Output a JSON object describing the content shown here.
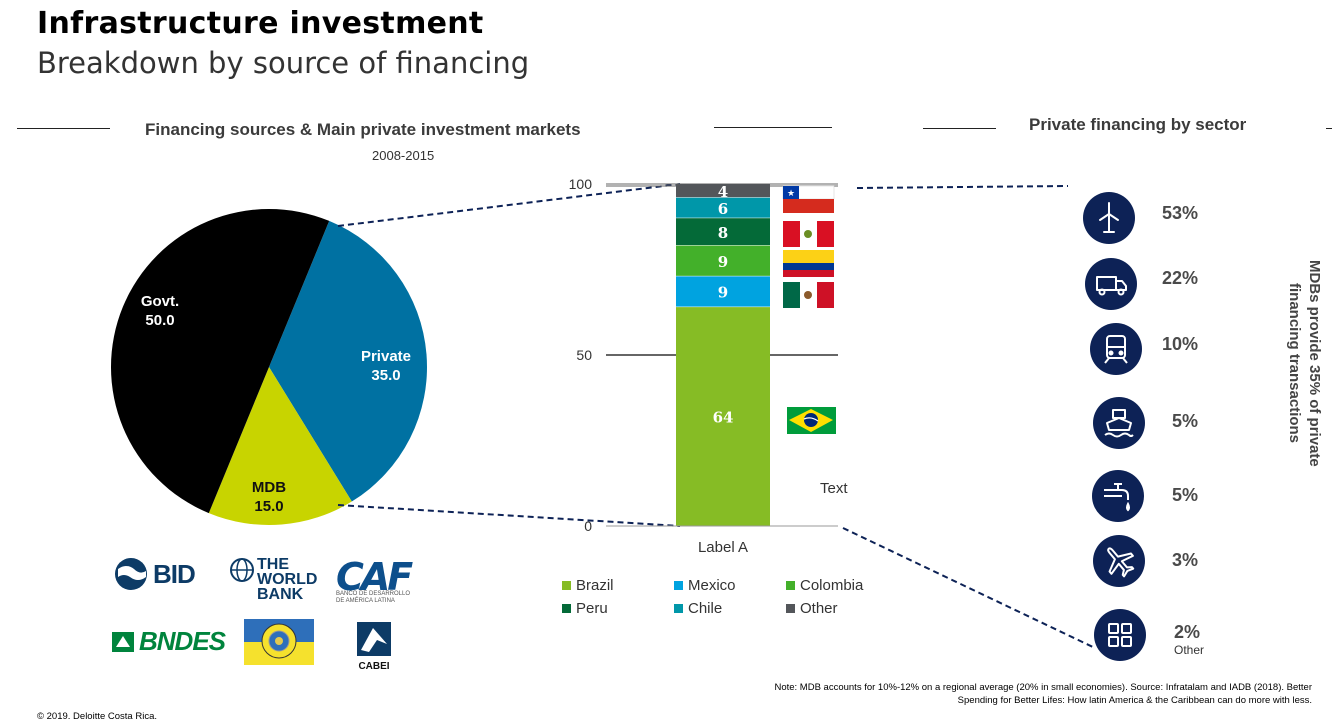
{
  "header": {
    "title": "Infrastructure investment",
    "subtitle": "Breakdown by source of financing"
  },
  "left_section": {
    "heading": "Financing sources & Main private investment markets",
    "period": "2008-2015"
  },
  "right_section": {
    "heading": "Private financing by sector",
    "vertical_note": "MDBs provide 35% of private financing transactions"
  },
  "chart_data": [
    {
      "type": "pie",
      "categories": [
        "Govt.",
        "Private",
        "MDB"
      ],
      "values": [
        50.0,
        35.0,
        15.0
      ],
      "value_labels": [
        "50.0",
        "35.0",
        "15.0"
      ],
      "colors": [
        "#000000",
        "#0071a2",
        "#c8d400"
      ]
    },
    {
      "type": "bar",
      "stacked": true,
      "categories": [
        "Label A"
      ],
      "series": [
        {
          "name": "Brazil",
          "values": [
            64
          ],
          "color": "#86bc25"
        },
        {
          "name": "Mexico",
          "values": [
            9
          ],
          "color": "#00a3e0"
        },
        {
          "name": "Colombia",
          "values": [
            9
          ],
          "color": "#43b02a"
        },
        {
          "name": "Peru",
          "values": [
            8
          ],
          "color": "#046a38"
        },
        {
          "name": "Chile",
          "values": [
            6
          ],
          "color": "#0097a9"
        },
        {
          "name": "Other",
          "values": [
            4
          ],
          "color": "#53565a"
        }
      ],
      "ylim": [
        0,
        100
      ],
      "yticks": [
        0,
        50,
        100
      ],
      "annotation": "Text"
    }
  ],
  "sectors": [
    {
      "icon": "wind-turbine-icon",
      "pct": "53%",
      "sub": ""
    },
    {
      "icon": "truck-icon",
      "pct": "22%",
      "sub": ""
    },
    {
      "icon": "train-icon",
      "pct": "10%",
      "sub": ""
    },
    {
      "icon": "ship-icon",
      "pct": "5%",
      "sub": ""
    },
    {
      "icon": "water-tap-icon",
      "pct": "5%",
      "sub": ""
    },
    {
      "icon": "airplane-icon",
      "pct": "3%",
      "sub": ""
    },
    {
      "icon": "grid-icon",
      "pct": "2%",
      "sub": "Other"
    }
  ],
  "logos": {
    "bid": "BID",
    "worldbank": [
      "THE",
      "WORLD",
      "BANK"
    ],
    "caf": "CAF",
    "caf_sub": [
      "BANCO DE DESARROLLO",
      "DE AMÉRICA LATINA"
    ],
    "bndes": "BNDES",
    "cabei": "CABEI"
  },
  "flags": [
    "chile-flag",
    "peru-flag",
    "colombia-flag",
    "mexico-flag",
    "brazil-flag"
  ],
  "footer": {
    "note_line1": "Note: MDB accounts for 10%-12% on a regional average  (20% in small economies). Source: Infratalam and IADB (2018). Better",
    "note_line2": "Spending for Better Lifes: How latin America & the Caribbean can do more with less.",
    "copyright": "© 2019. Deloitte Costa Rica."
  },
  "colors": {
    "navy": "#0d2256",
    "dashed_line": "#0d2256"
  }
}
